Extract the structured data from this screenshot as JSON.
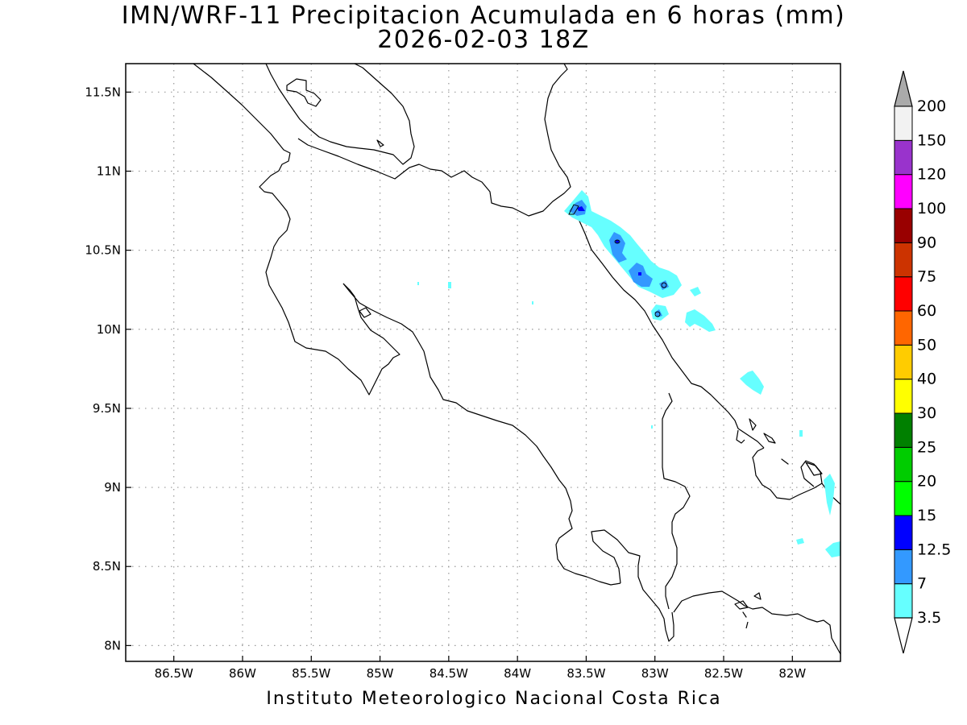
{
  "title": {
    "line1": "IMN/WRF-11 Precipitacion Acumulada en 6 horas (mm)",
    "line2": "2026-02-03 18Z"
  },
  "footer": "Instituto Meteorologico Nacional Costa Rica",
  "map": {
    "lon_range": [
      -86.85,
      -81.65
    ],
    "lat_range": [
      7.9,
      11.68
    ],
    "grid": true,
    "lat_ticks": [
      {
        "value": 11.5,
        "label": "11.5N"
      },
      {
        "value": 11.0,
        "label": "11N"
      },
      {
        "value": 10.5,
        "label": "10.5N"
      },
      {
        "value": 10.0,
        "label": "10N"
      },
      {
        "value": 9.5,
        "label": "9.5N"
      },
      {
        "value": 9.0,
        "label": "9N"
      },
      {
        "value": 8.5,
        "label": "8.5N"
      },
      {
        "value": 8.0,
        "label": "8N"
      }
    ],
    "lon_ticks": [
      {
        "value": -86.5,
        "label": "86.5W"
      },
      {
        "value": -86.0,
        "label": "86W"
      },
      {
        "value": -85.5,
        "label": "85.5W"
      },
      {
        "value": -85.0,
        "label": "85W"
      },
      {
        "value": -84.5,
        "label": "84.5W"
      },
      {
        "value": -84.0,
        "label": "84W"
      },
      {
        "value": -83.5,
        "label": "83.5W"
      },
      {
        "value": -83.0,
        "label": "83W"
      },
      {
        "value": -82.5,
        "label": "82.5W"
      },
      {
        "value": -82.0,
        "label": "82W"
      }
    ]
  },
  "colorbar": {
    "levels": [
      "3.5",
      "7",
      "12.5",
      "15",
      "20",
      "25",
      "30",
      "40",
      "50",
      "60",
      "75",
      "90",
      "100",
      "120",
      "150",
      "200"
    ],
    "colors": [
      "#66ffff",
      "#3399ff",
      "#0000ff",
      "#00ff00",
      "#00cc00",
      "#008000",
      "#ffff00",
      "#ffcc00",
      "#ff6600",
      "#ff0000",
      "#cc3300",
      "#990000",
      "#ff00ff",
      "#9933cc",
      "#f2f2f2"
    ],
    "over_color": "#aaaaaa",
    "under_color": "#ffffff"
  }
}
